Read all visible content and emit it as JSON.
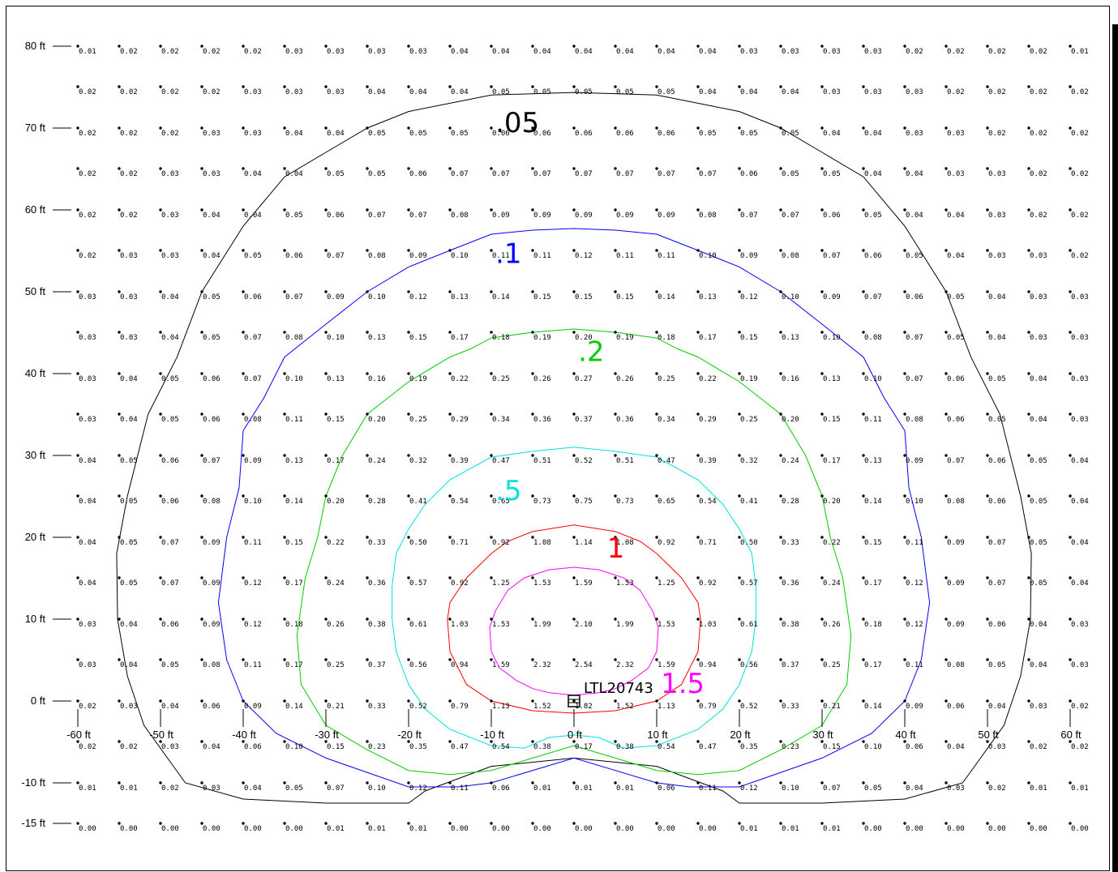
{
  "chart_data": {
    "type": "isofootcandle-plot",
    "fixture_label": "LTL20743",
    "y_axis_labels": [
      "80 ft",
      "70 ft",
      "60 ft",
      "50 ft",
      "40 ft",
      "30 ft",
      "20 ft",
      "10 ft",
      "0 ft",
      "-10 ft",
      "-15 ft"
    ],
    "x_axis_labels": [
      "-60 ft",
      "-50 ft",
      "-40 ft",
      "-30 ft",
      "-20 ft",
      "-10 ft",
      "0 ft",
      "10 ft",
      "20 ft",
      "30 ft",
      "40 ft",
      "50 ft",
      "60 ft"
    ],
    "x_positions_ft": [
      -60,
      -55,
      -50,
      -45,
      -40,
      -35,
      -30,
      -25,
      -20,
      -15,
      -10,
      -5,
      0,
      5,
      10,
      15,
      20,
      25,
      30,
      35,
      40,
      45,
      50,
      55,
      60
    ],
    "rows": [
      {
        "y": 80,
        "values": [
          "0.01",
          "0.02",
          "0.02",
          "0.02",
          "0.02",
          "0.03",
          "0.03",
          "0.03",
          "0.03",
          "0.04",
          "0.04",
          "0.04",
          "0.04",
          "0.04",
          "0.04",
          "0.04",
          "0.03",
          "0.03",
          "0.03",
          "0.03",
          "0.02",
          "0.02",
          "0.02",
          "0.02",
          "0.01"
        ]
      },
      {
        "y": 75,
        "values": [
          "0.02",
          "0.02",
          "0.02",
          "0.02",
          "0.03",
          "0.03",
          "0.03",
          "0.04",
          "0.04",
          "0.04",
          "0.05",
          "0.05",
          "0.05",
          "0.05",
          "0.05",
          "0.04",
          "0.04",
          "0.04",
          "0.03",
          "0.03",
          "0.03",
          "0.02",
          "0.02",
          "0.02",
          "0.02"
        ]
      },
      {
        "y": 70,
        "values": [
          "0.02",
          "0.02",
          "0.02",
          "0.03",
          "0.03",
          "0.04",
          "0.04",
          "0.05",
          "0.05",
          "0.05",
          "0.06",
          "0.06",
          "0.06",
          "0.06",
          "0.06",
          "0.05",
          "0.05",
          "0.05",
          "0.04",
          "0.04",
          "0.03",
          "0.03",
          "0.02",
          "0.02",
          "0.02"
        ]
      },
      {
        "y": 65,
        "values": [
          "0.02",
          "0.02",
          "0.03",
          "0.03",
          "0.04",
          "0.04",
          "0.05",
          "0.05",
          "0.06",
          "0.07",
          "0.07",
          "0.07",
          "0.07",
          "0.07",
          "0.07",
          "0.07",
          "0.06",
          "0.05",
          "0.05",
          "0.04",
          "0.04",
          "0.03",
          "0.03",
          "0.02",
          "0.02"
        ]
      },
      {
        "y": 60,
        "values": [
          "0.02",
          "0.02",
          "0.03",
          "0.04",
          "0.04",
          "0.05",
          "0.06",
          "0.07",
          "0.07",
          "0.08",
          "0.09",
          "0.09",
          "0.09",
          "0.09",
          "0.09",
          "0.08",
          "0.07",
          "0.07",
          "0.06",
          "0.05",
          "0.04",
          "0.04",
          "0.03",
          "0.02",
          "0.02"
        ]
      },
      {
        "y": 55,
        "values": [
          "0.02",
          "0.03",
          "0.03",
          "0.04",
          "0.05",
          "0.06",
          "0.07",
          "0.08",
          "0.09",
          "0.10",
          "0.11",
          "0.11",
          "0.12",
          "0.11",
          "0.11",
          "0.10",
          "0.09",
          "0.08",
          "0.07",
          "0.06",
          "0.05",
          "0.04",
          "0.03",
          "0.03",
          "0.02"
        ]
      },
      {
        "y": 50,
        "values": [
          "0.03",
          "0.03",
          "0.04",
          "0.05",
          "0.06",
          "0.07",
          "0.09",
          "0.10",
          "0.12",
          "0.13",
          "0.14",
          "0.15",
          "0.15",
          "0.15",
          "0.14",
          "0.13",
          "0.12",
          "0.10",
          "0.09",
          "0.07",
          "0.06",
          "0.05",
          "0.04",
          "0.03",
          "0.03"
        ]
      },
      {
        "y": 45,
        "values": [
          "0.03",
          "0.03",
          "0.04",
          "0.05",
          "0.07",
          "0.08",
          "0.10",
          "0.13",
          "0.15",
          "0.17",
          "0.18",
          "0.19",
          "0.20",
          "0.19",
          "0.18",
          "0.17",
          "0.15",
          "0.13",
          "0.10",
          "0.08",
          "0.07",
          "0.05",
          "0.04",
          "0.03",
          "0.03"
        ]
      },
      {
        "y": 40,
        "values": [
          "0.03",
          "0.04",
          "0.05",
          "0.06",
          "0.07",
          "0.10",
          "0.13",
          "0.16",
          "0.19",
          "0.22",
          "0.25",
          "0.26",
          "0.27",
          "0.26",
          "0.25",
          "0.22",
          "0.19",
          "0.16",
          "0.13",
          "0.10",
          "0.07",
          "0.06",
          "0.05",
          "0.04",
          "0.03"
        ]
      },
      {
        "y": 35,
        "values": [
          "0.03",
          "0.04",
          "0.05",
          "0.06",
          "0.08",
          "0.11",
          "0.15",
          "0.20",
          "0.25",
          "0.29",
          "0.34",
          "0.36",
          "0.37",
          "0.36",
          "0.34",
          "0.29",
          "0.25",
          "0.20",
          "0.15",
          "0.11",
          "0.08",
          "0.06",
          "0.05",
          "0.04",
          "0.03"
        ]
      },
      {
        "y": 30,
        "values": [
          "0.04",
          "0.05",
          "0.06",
          "0.07",
          "0.09",
          "0.13",
          "0.17",
          "0.24",
          "0.32",
          "0.39",
          "0.47",
          "0.51",
          "0.52",
          "0.51",
          "0.47",
          "0.39",
          "0.32",
          "0.24",
          "0.17",
          "0.13",
          "0.09",
          "0.07",
          "0.06",
          "0.05",
          "0.04"
        ]
      },
      {
        "y": 25,
        "values": [
          "0.04",
          "0.05",
          "0.06",
          "0.08",
          "0.10",
          "0.14",
          "0.20",
          "0.28",
          "0.41",
          "0.54",
          "0.65",
          "0.73",
          "0.75",
          "0.73",
          "0.65",
          "0.54",
          "0.41",
          "0.28",
          "0.20",
          "0.14",
          "0.10",
          "0.08",
          "0.06",
          "0.05",
          "0.04"
        ]
      },
      {
        "y": 20,
        "values": [
          "0.04",
          "0.05",
          "0.07",
          "0.09",
          "0.11",
          "0.15",
          "0.22",
          "0.33",
          "0.50",
          "0.71",
          "0.92",
          "1.08",
          "1.14",
          "1.08",
          "0.92",
          "0.71",
          "0.50",
          "0.33",
          "0.22",
          "0.15",
          "0.11",
          "0.09",
          "0.07",
          "0.05",
          "0.04"
        ]
      },
      {
        "y": 15,
        "values": [
          "0.04",
          "0.05",
          "0.07",
          "0.09",
          "0.12",
          "0.17",
          "0.24",
          "0.36",
          "0.57",
          "0.92",
          "1.25",
          "1.53",
          "1.59",
          "1.53",
          "1.25",
          "0.92",
          "0.57",
          "0.36",
          "0.24",
          "0.17",
          "0.12",
          "0.09",
          "0.07",
          "0.05",
          "0.04"
        ]
      },
      {
        "y": 10,
        "values": [
          "0.03",
          "0.04",
          "0.06",
          "0.09",
          "0.12",
          "0.18",
          "0.26",
          "0.38",
          "0.61",
          "1.03",
          "1.53",
          "1.99",
          "2.10",
          "1.99",
          "1.53",
          "1.03",
          "0.61",
          "0.38",
          "0.26",
          "0.18",
          "0.12",
          "0.09",
          "0.06",
          "0.04",
          "0.03"
        ]
      },
      {
        "y": 5,
        "values": [
          "0.03",
          "0.04",
          "0.05",
          "0.08",
          "0.11",
          "0.17",
          "0.25",
          "0.37",
          "0.56",
          "0.94",
          "1.59",
          "2.32",
          "2.54",
          "2.32",
          "1.59",
          "0.94",
          "0.56",
          "0.37",
          "0.25",
          "0.17",
          "0.11",
          "0.08",
          "0.05",
          "0.04",
          "0.03"
        ]
      },
      {
        "y": 0,
        "values": [
          "0.02",
          "0.03",
          "0.04",
          "0.06",
          "0.09",
          "0.14",
          "0.21",
          "0.33",
          "0.52",
          "0.79",
          "1.13",
          "1.52",
          "1.82",
          "1.52",
          "1.13",
          "0.79",
          "0.52",
          "0.33",
          "0.21",
          "0.14",
          "0.09",
          "0.06",
          "0.04",
          "0.03",
          "0.02"
        ]
      },
      {
        "y": -5,
        "values": [
          "0.02",
          "0.02",
          "0.03",
          "0.04",
          "0.06",
          "0.10",
          "0.15",
          "0.23",
          "0.35",
          "0.47",
          "0.54",
          "0.38",
          "0.17",
          "0.38",
          "0.54",
          "0.47",
          "0.35",
          "0.23",
          "0.15",
          "0.10",
          "0.06",
          "0.04",
          "0.03",
          "0.02",
          "0.02"
        ]
      },
      {
        "y": -10,
        "values": [
          "0.01",
          "0.01",
          "0.02",
          "0.03",
          "0.04",
          "0.05",
          "0.07",
          "0.10",
          "0.12",
          "0.11",
          "0.06",
          "0.01",
          "0.01",
          "0.01",
          "0.06",
          "0.11",
          "0.12",
          "0.10",
          "0.07",
          "0.05",
          "0.04",
          "0.03",
          "0.02",
          "0.01",
          "0.01"
        ]
      },
      {
        "y": -15,
        "values": [
          "0.00",
          "0.00",
          "0.00",
          "0.00",
          "0.00",
          "0.00",
          "0.01",
          "0.01",
          "0.01",
          "0.00",
          "0.00",
          "0.00",
          "0.00",
          "0.00",
          "0.00",
          "0.00",
          "0.01",
          "0.01",
          "0.01",
          "0.00",
          "0.00",
          "0.00",
          "0.00",
          "0.00",
          "0.00"
        ]
      }
    ],
    "contours": [
      {
        "label": ".05",
        "level": 0.05,
        "color": "#000000"
      },
      {
        "label": ".1",
        "level": 0.1,
        "color": "#0000ff"
      },
      {
        "label": ".2",
        "level": 0.2,
        "color": "#00cc00"
      },
      {
        "label": ".5",
        "level": 0.5,
        "color": "#00e0e0"
      },
      {
        "label": "1",
        "level": 1.0,
        "color": "#ff0000"
      },
      {
        "label": "1.5",
        "level": 1.5,
        "color": "#ff00ff"
      }
    ]
  }
}
